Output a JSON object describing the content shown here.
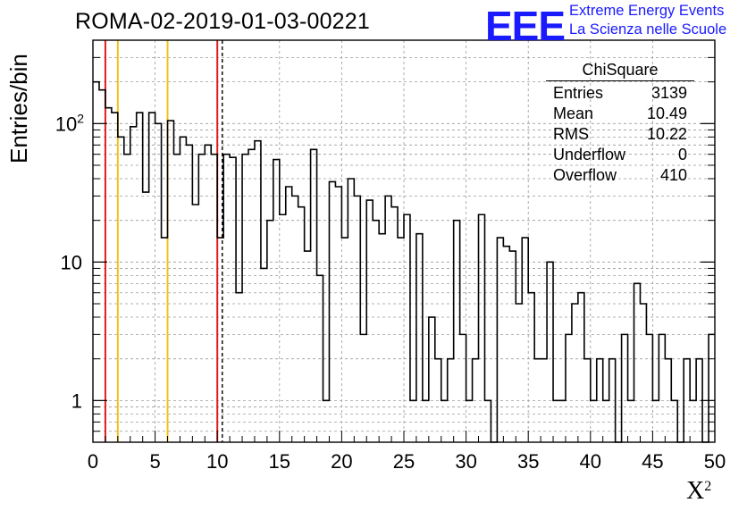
{
  "header": {
    "title": "ROMA-02-2019-01-03-00221",
    "brand_logo": "EEE",
    "brand_line1": "Extreme Energy Events",
    "brand_line2": "La Scienza nelle Scuole"
  },
  "colors": {
    "red_line": "#e11b1b",
    "yellow_line": "#f2c21b",
    "histogram": "#000000",
    "brand": "#1a1aff",
    "grid": "#9a9a9a"
  },
  "stats": {
    "title": "ChiSquare",
    "rows": [
      {
        "label": "Entries",
        "value": "3139"
      },
      {
        "label": "Mean",
        "value": "10.49"
      },
      {
        "label": "RMS",
        "value": "10.22"
      },
      {
        "label": "Underflow",
        "value": "0"
      },
      {
        "label": "Overflow",
        "value": "410"
      }
    ]
  },
  "chart_data": {
    "type": "histogram",
    "title": "ROMA-02-2019-01-03-00221",
    "xlabel": "X²",
    "ylabel": "Entries/bin",
    "xlim": [
      0,
      50
    ],
    "ylim": [
      0.5,
      400
    ],
    "y_scale": "log",
    "grid": true,
    "bin_width": 0.5,
    "x_ticks": [
      "0",
      "5",
      "10",
      "15",
      "20",
      "25",
      "30",
      "35",
      "40",
      "45",
      "50"
    ],
    "y_ticks": [
      {
        "value": 1,
        "label": "1"
      },
      {
        "value": 10,
        "label": "10"
      },
      {
        "value": 100,
        "label": "10²"
      }
    ],
    "vertical_lines": [
      {
        "x": 1,
        "color": "red",
        "style": "solid"
      },
      {
        "x": 2,
        "color": "yellow",
        "style": "solid"
      },
      {
        "x": 6,
        "color": "yellow",
        "style": "solid"
      },
      {
        "x": 10,
        "color": "red",
        "style": "solid"
      },
      {
        "x": 10.4,
        "color": "black",
        "style": "dashed"
      }
    ],
    "values": [
      200,
      175,
      130,
      120,
      80,
      60,
      95,
      120,
      32,
      120,
      100,
      15,
      105,
      60,
      80,
      70,
      26,
      60,
      70,
      60,
      15,
      60,
      57,
      6,
      60,
      65,
      75,
      9,
      20,
      55,
      22,
      35,
      30,
      25,
      12,
      65,
      8,
      1,
      38,
      35,
      15,
      40,
      30,
      3,
      28,
      20,
      16,
      30,
      25,
      15,
      22,
      1,
      16,
      1,
      4,
      2,
      1,
      2,
      20,
      3,
      1,
      2,
      22,
      1,
      0,
      15,
      13,
      12,
      5,
      15,
      6,
      2,
      2,
      10,
      1,
      1,
      3,
      5,
      6,
      2,
      1,
      2,
      1,
      2,
      0,
      3,
      1,
      7,
      5,
      3,
      1,
      3,
      2,
      1,
      0,
      2,
      1,
      2,
      0,
      3
    ]
  }
}
